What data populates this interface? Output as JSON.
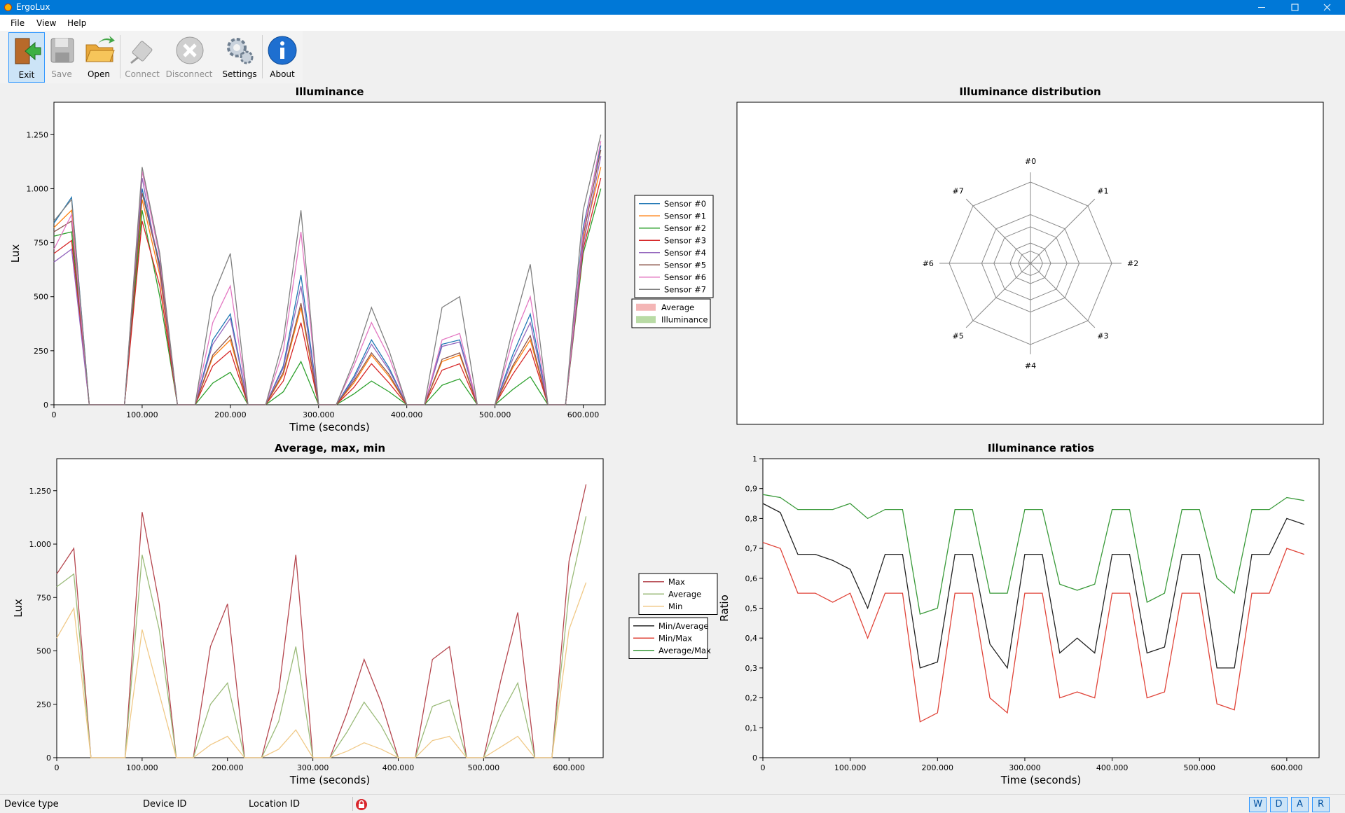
{
  "window": {
    "title": "ErgoLux"
  },
  "menu": [
    "File",
    "View",
    "Help"
  ],
  "toolbar": [
    "Exit",
    "Save",
    "Open",
    "Connect",
    "Disconnect",
    "Settings",
    "About"
  ],
  "status": {
    "fields": [
      "Device type",
      "Device ID",
      "Location ID"
    ],
    "buttons": [
      "W",
      "D",
      "A",
      "R"
    ]
  },
  "chart_data": [
    {
      "type": "line",
      "title": "Illuminance",
      "xlabel": "Time (seconds)",
      "ylabel": "Lux",
      "xlim": [
        0,
        625000
      ],
      "ylim": [
        0,
        1400
      ],
      "xticks": [
        0,
        {
          "value": 100000,
          "label": "100.000"
        },
        {
          "value": 200000,
          "label": "200.000"
        },
        {
          "value": 300000,
          "label": "300.000"
        },
        {
          "value": 400000,
          "label": "400.000"
        },
        {
          "value": 500000,
          "label": "500.000"
        },
        {
          "value": 600000,
          "label": "600.000"
        }
      ],
      "yticks": [
        0,
        250,
        500,
        750,
        {
          "value": 1000,
          "label": "1.000"
        },
        {
          "value": 1250,
          "label": "1.250"
        }
      ],
      "x": [
        0,
        20000,
        40000,
        60000,
        80000,
        100000,
        120000,
        140000,
        160000,
        180000,
        200000,
        220000,
        240000,
        260000,
        280000,
        300000,
        320000,
        340000,
        360000,
        380000,
        400000,
        420000,
        440000,
        460000,
        480000,
        500000,
        520000,
        540000,
        560000,
        580000,
        600000,
        620000
      ],
      "series": [
        {
          "name": "Sensor #0",
          "color": "#1f77b4",
          "values": [
            840,
            960,
            0,
            0,
            0,
            1000,
            650,
            0,
            0,
            300,
            420,
            0,
            0,
            180,
            600,
            0,
            0,
            130,
            300,
            170,
            0,
            0,
            280,
            300,
            0,
            0,
            230,
            420,
            0,
            0,
            820,
            1200
          ]
        },
        {
          "name": "Sensor #1",
          "color": "#ff7f0e",
          "values": [
            820,
            900,
            0,
            0,
            0,
            950,
            600,
            0,
            0,
            220,
            300,
            0,
            0,
            140,
            450,
            0,
            0,
            100,
            230,
            130,
            0,
            0,
            200,
            230,
            0,
            0,
            170,
            300,
            0,
            0,
            760,
            1100
          ]
        },
        {
          "name": "Sensor #2",
          "color": "#2ca02c",
          "values": [
            780,
            800,
            0,
            0,
            0,
            900,
            500,
            0,
            0,
            100,
            150,
            0,
            0,
            60,
            200,
            0,
            0,
            50,
            110,
            60,
            0,
            0,
            90,
            120,
            0,
            0,
            70,
            130,
            0,
            0,
            700,
            1000
          ]
        },
        {
          "name": "Sensor #3",
          "color": "#d62728",
          "values": [
            700,
            760,
            0,
            0,
            0,
            850,
            550,
            0,
            0,
            180,
            250,
            0,
            0,
            110,
            380,
            0,
            0,
            80,
            190,
            100,
            0,
            0,
            160,
            190,
            0,
            0,
            140,
            260,
            0,
            0,
            720,
            1050
          ]
        },
        {
          "name": "Sensor #4",
          "color": "#9467bd",
          "values": [
            660,
            720,
            0,
            0,
            0,
            1050,
            620,
            0,
            0,
            280,
            400,
            0,
            0,
            170,
            550,
            0,
            0,
            120,
            280,
            160,
            0,
            0,
            270,
            290,
            0,
            0,
            210,
            380,
            0,
            0,
            740,
            1150
          ]
        },
        {
          "name": "Sensor #5",
          "color": "#8c564b",
          "values": [
            800,
            850,
            0,
            0,
            0,
            980,
            640,
            0,
            0,
            230,
            320,
            0,
            0,
            150,
            470,
            0,
            0,
            110,
            240,
            140,
            0,
            0,
            210,
            240,
            0,
            0,
            180,
            320,
            0,
            0,
            780,
            1180
          ]
        },
        {
          "name": "Sensor #6",
          "color": "#e377c2",
          "values": [
            720,
            880,
            0,
            0,
            0,
            1080,
            680,
            0,
            0,
            380,
            550,
            0,
            0,
            250,
            800,
            0,
            0,
            180,
            380,
            220,
            0,
            0,
            300,
            330,
            0,
            0,
            300,
            500,
            0,
            0,
            800,
            1220
          ]
        },
        {
          "name": "Sensor #7",
          "color": "#7f7f7f",
          "values": [
            850,
            950,
            0,
            0,
            0,
            1100,
            700,
            0,
            0,
            500,
            700,
            0,
            0,
            300,
            900,
            0,
            0,
            200,
            450,
            250,
            0,
            0,
            450,
            500,
            0,
            0,
            350,
            650,
            0,
            0,
            900,
            1250
          ]
        }
      ]
    },
    {
      "type": "radar",
      "title": "Illuminance distribution",
      "categories": [
        "#0",
        "#1",
        "#2",
        "#3",
        "#4",
        "#5",
        "#6",
        "#7"
      ],
      "series": [
        {
          "name": "Average",
          "color": "#f4b6b6"
        },
        {
          "name": "Illuminance",
          "color": "#b9dba5"
        }
      ]
    },
    {
      "type": "line",
      "title": "Average, max, min",
      "xlabel": "Time (seconds)",
      "ylabel": "Lux",
      "xlim": [
        0,
        640000
      ],
      "ylim": [
        0,
        1400
      ],
      "xticks": [
        0,
        {
          "value": 100000,
          "label": "100.000"
        },
        {
          "value": 200000,
          "label": "200.000"
        },
        {
          "value": 300000,
          "label": "300.000"
        },
        {
          "value": 400000,
          "label": "400.000"
        },
        {
          "value": 500000,
          "label": "500.000"
        },
        {
          "value": 600000,
          "label": "600.000"
        }
      ],
      "yticks": [
        0,
        250,
        500,
        750,
        {
          "value": 1000,
          "label": "1.000"
        },
        {
          "value": 1250,
          "label": "1.250"
        }
      ],
      "x": [
        0,
        20000,
        40000,
        60000,
        80000,
        100000,
        120000,
        140000,
        160000,
        180000,
        200000,
        220000,
        240000,
        260000,
        280000,
        300000,
        320000,
        340000,
        360000,
        380000,
        400000,
        420000,
        440000,
        460000,
        480000,
        500000,
        520000,
        540000,
        560000,
        580000,
        600000,
        620000
      ],
      "series": [
        {
          "name": "Max",
          "color": "#b5474f",
          "values": [
            860,
            980,
            0,
            0,
            0,
            1150,
            720,
            0,
            0,
            520,
            720,
            0,
            0,
            310,
            950,
            0,
            0,
            210,
            460,
            260,
            0,
            0,
            460,
            520,
            0,
            0,
            360,
            680,
            0,
            0,
            920,
            1280
          ]
        },
        {
          "name": "Average",
          "color": "#9bbb7a",
          "values": [
            800,
            860,
            0,
            0,
            0,
            950,
            600,
            0,
            0,
            250,
            350,
            0,
            0,
            170,
            520,
            0,
            0,
            120,
            260,
            150,
            0,
            0,
            240,
            270,
            0,
            0,
            200,
            350,
            0,
            0,
            770,
            1130
          ]
        },
        {
          "name": "Min",
          "color": "#f0c987",
          "values": [
            560,
            700,
            0,
            0,
            0,
            600,
            300,
            0,
            0,
            60,
            100,
            0,
            0,
            40,
            130,
            0,
            0,
            30,
            70,
            40,
            0,
            0,
            80,
            100,
            0,
            0,
            50,
            100,
            0,
            0,
            600,
            820
          ]
        }
      ]
    },
    {
      "type": "line",
      "title": "Illuminance ratios",
      "xlabel": "Time (seconds)",
      "ylabel": "Ratio",
      "xlim": [
        0,
        637000
      ],
      "ylim": [
        0,
        1
      ],
      "xticks": [
        0,
        {
          "value": 100000,
          "label": "100.000"
        },
        {
          "value": 200000,
          "label": "200.000"
        },
        {
          "value": 300000,
          "label": "300.000"
        },
        {
          "value": 400000,
          "label": "400.000"
        },
        {
          "value": 500000,
          "label": "500.000"
        },
        {
          "value": 600000,
          "label": "600.000"
        }
      ],
      "yticks": [
        0,
        {
          "value": 0.1,
          "label": "0,1"
        },
        {
          "value": 0.2,
          "label": "0,2"
        },
        {
          "value": 0.3,
          "label": "0,3"
        },
        {
          "value": 0.4,
          "label": "0,4"
        },
        {
          "value": 0.5,
          "label": "0,5"
        },
        {
          "value": 0.6,
          "label": "0,6"
        },
        {
          "value": 0.7,
          "label": "0,7"
        },
        {
          "value": 0.8,
          "label": "0,8"
        },
        {
          "value": 0.9,
          "label": "0,9"
        },
        1
      ],
      "x": [
        0,
        20000,
        40000,
        60000,
        80000,
        100000,
        120000,
        140000,
        160000,
        180000,
        200000,
        220000,
        240000,
        260000,
        280000,
        300000,
        320000,
        340000,
        360000,
        380000,
        400000,
        420000,
        440000,
        460000,
        480000,
        500000,
        520000,
        540000,
        560000,
        580000,
        600000,
        620000
      ],
      "series": [
        {
          "name": "Min/Average",
          "color": "#222222",
          "values": [
            0.85,
            0.82,
            0.68,
            0.68,
            0.66,
            0.63,
            0.5,
            0.68,
            0.68,
            0.3,
            0.32,
            0.68,
            0.68,
            0.38,
            0.3,
            0.68,
            0.68,
            0.35,
            0.4,
            0.35,
            0.68,
            0.68,
            0.35,
            0.37,
            0.68,
            0.68,
            0.3,
            0.3,
            0.68,
            0.68,
            0.8,
            0.78
          ]
        },
        {
          "name": "Min/Max",
          "color": "#e0453a",
          "values": [
            0.72,
            0.7,
            0.55,
            0.55,
            0.52,
            0.55,
            0.4,
            0.55,
            0.55,
            0.12,
            0.15,
            0.55,
            0.55,
            0.2,
            0.15,
            0.55,
            0.55,
            0.2,
            0.22,
            0.2,
            0.55,
            0.55,
            0.2,
            0.22,
            0.55,
            0.55,
            0.18,
            0.16,
            0.55,
            0.55,
            0.7,
            0.68
          ]
        },
        {
          "name": "Average/Max",
          "color": "#3a9a3a",
          "values": [
            0.88,
            0.87,
            0.83,
            0.83,
            0.83,
            0.85,
            0.8,
            0.83,
            0.83,
            0.48,
            0.5,
            0.83,
            0.83,
            0.55,
            0.55,
            0.83,
            0.83,
            0.58,
            0.56,
            0.58,
            0.83,
            0.83,
            0.52,
            0.55,
            0.83,
            0.83,
            0.6,
            0.55,
            0.83,
            0.83,
            0.87,
            0.86
          ]
        }
      ]
    }
  ]
}
